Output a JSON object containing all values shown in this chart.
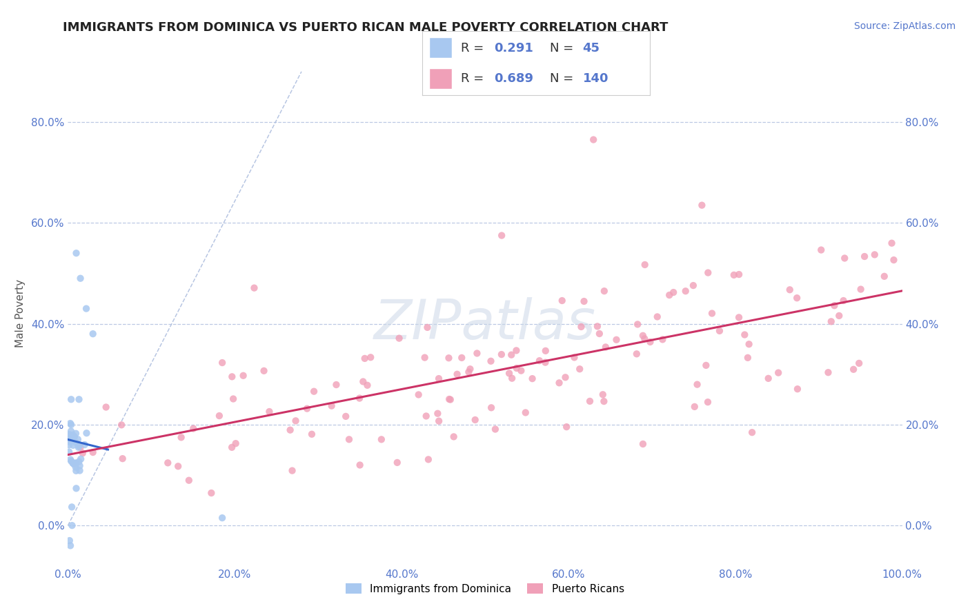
{
  "title": "IMMIGRANTS FROM DOMINICA VS PUERTO RICAN MALE POVERTY CORRELATION CHART",
  "source": "Source: ZipAtlas.com",
  "ylabel": "Male Poverty",
  "legend_label1": "Immigrants from Dominica",
  "legend_label2": "Puerto Ricans",
  "r1": 0.291,
  "n1": 45,
  "r2": 0.689,
  "n2": 140,
  "color1": "#a8c8f0",
  "color2": "#f0a0b8",
  "line_color1": "#3366cc",
  "line_color2": "#cc3366",
  "dashed_color": "#aabbdd",
  "tick_color": "#5577cc",
  "title_color": "#222222",
  "bg_color": "#ffffff",
  "watermark_color": "#ccd8e8",
  "xlim": [
    0.0,
    1.0
  ],
  "ylim": [
    -0.08,
    0.92
  ],
  "xticks": [
    0.0,
    0.2,
    0.4,
    0.6,
    0.8,
    1.0
  ],
  "yticks": [
    0.0,
    0.2,
    0.4,
    0.6,
    0.8
  ],
  "title_fontsize": 13,
  "source_fontsize": 10,
  "tick_fontsize": 11,
  "ylabel_fontsize": 11
}
